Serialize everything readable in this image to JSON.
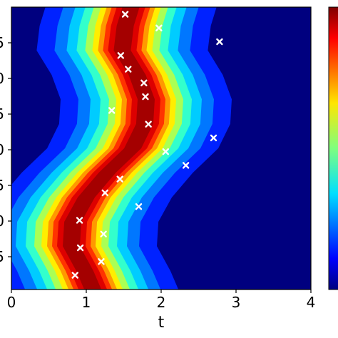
{
  "chart_data": {
    "type": "heatmap",
    "title": "",
    "xlabel": "t",
    "ylabel": "",
    "xlim": [
      0,
      4
    ],
    "x_ticks": [
      "0",
      "1",
      "2",
      "3",
      "4"
    ],
    "y_tick_fragments": [
      "5",
      "0",
      "5",
      "0",
      "5",
      "0",
      "5"
    ],
    "colormap": "jet",
    "colorbar": true,
    "heat_ridge": {
      "description_units": "x = t at which the field peaks, listed top to bottom",
      "center_t": [
        1.62,
        1.52,
        1.48,
        1.68,
        1.8,
        1.78,
        1.62,
        1.28,
        1.0,
        0.82,
        0.8,
        0.98,
        1.12
      ]
    },
    "markers": {
      "symbol": "x",
      "color": "#ffffff",
      "t_values": [
        1.52,
        1.97,
        2.78,
        1.46,
        1.56,
        1.77,
        1.79,
        1.34,
        1.83,
        2.7,
        2.06,
        2.33,
        1.45,
        1.25,
        1.7,
        0.91,
        1.23,
        0.92,
        1.2,
        0.85
      ]
    }
  }
}
